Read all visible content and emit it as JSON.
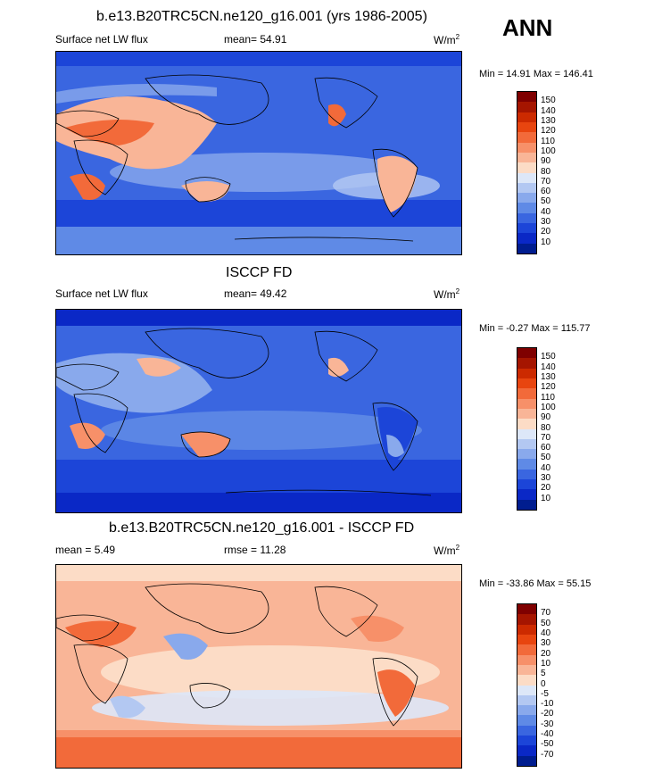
{
  "season": "ANN",
  "panel1": {
    "title": "b.e13.B20TRC5CN.ne120_g16.001 (yrs 1986-2005)",
    "left": "Surface net LW flux",
    "mean": "mean=  54.91",
    "units": "W/m",
    "units_sup": "2",
    "minmax": "Min =  14.91 Max = 146.41",
    "levels": [
      "150",
      "140",
      "130",
      "120",
      "110",
      "100",
      "90",
      "80",
      "70",
      "60",
      "50",
      "40",
      "30",
      "20",
      "10"
    ],
    "colors": [
      "#7f0000",
      "#a51500",
      "#cc2a00",
      "#e8450f",
      "#f26a3a",
      "#f79069",
      "#f9b597",
      "#fcdcc6",
      "#dde7f8",
      "#b3c8f2",
      "#89a9ec",
      "#5f8ae6",
      "#3a66e0",
      "#1c45d8",
      "#0a28c6",
      "#001d8f"
    ]
  },
  "panel2": {
    "title": "ISCCP FD",
    "left": "Surface net LW flux",
    "mean": "mean=  49.42",
    "units": "W/m",
    "units_sup": "2",
    "minmax": "Min =  -0.27 Max = 115.77",
    "levels": [
      "150",
      "140",
      "130",
      "120",
      "110",
      "100",
      "90",
      "80",
      "70",
      "60",
      "50",
      "40",
      "30",
      "20",
      "10"
    ],
    "colors": [
      "#7f0000",
      "#a51500",
      "#cc2a00",
      "#e8450f",
      "#f26a3a",
      "#f79069",
      "#f9b597",
      "#fcdcc6",
      "#dde7f8",
      "#b3c8f2",
      "#89a9ec",
      "#5f8ae6",
      "#3a66e0",
      "#1c45d8",
      "#0a28c6",
      "#001d8f"
    ]
  },
  "panel3": {
    "title": "b.e13.B20TRC5CN.ne120_g16.001 - ISCCP FD",
    "mean": "mean =   5.49",
    "rmse": "rmse =  11.28",
    "units": "W/m",
    "units_sup": "2",
    "minmax": "Min = -33.86 Max =  55.15",
    "levels": [
      "70",
      "50",
      "40",
      "30",
      "20",
      "10",
      "5",
      "0",
      "-5",
      "-10",
      "-20",
      "-30",
      "-40",
      "-50",
      "-70"
    ],
    "colors": [
      "#7f0000",
      "#a51500",
      "#cc2a00",
      "#e8450f",
      "#f26a3a",
      "#f79069",
      "#f9b597",
      "#fcdcc6",
      "#dde7f8",
      "#b3c8f2",
      "#89a9ec",
      "#5f8ae6",
      "#3a66e0",
      "#1c45d8",
      "#0a28c6",
      "#001d8f"
    ]
  }
}
